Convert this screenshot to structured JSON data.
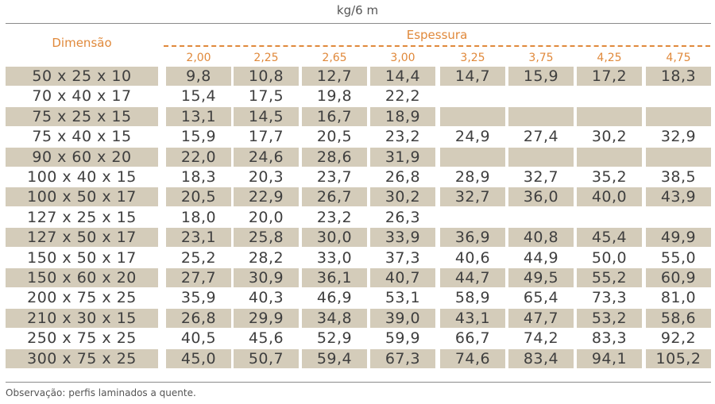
{
  "unit_header": "kg/6 m",
  "dimension_header": "Dimensão",
  "thickness_header": "Espessura",
  "thicknesses": [
    "2,00",
    "2,25",
    "2,65",
    "3,00",
    "3,25",
    "3,75",
    "4,25",
    "4,75"
  ],
  "rows": [
    {
      "dim": "50 x 25 x 10",
      "values": [
        "9,8",
        "10,8",
        "12,7",
        "14,4",
        "14,7",
        "15,9",
        "17,2",
        "18,3"
      ]
    },
    {
      "dim": "70 x 40 x 17",
      "values": [
        "15,4",
        "17,5",
        "19,8",
        "22,2",
        "",
        "",
        "",
        ""
      ]
    },
    {
      "dim": "75 x 25 x 15",
      "values": [
        "13,1",
        "14,5",
        "16,7",
        "18,9",
        "",
        "",
        "",
        ""
      ]
    },
    {
      "dim": "75 x 40 x 15",
      "values": [
        "15,9",
        "17,7",
        "20,5",
        "23,2",
        "24,9",
        "27,4",
        "30,2",
        "32,9"
      ]
    },
    {
      "dim": "90 x 60 x 20",
      "values": [
        "22,0",
        "24,6",
        "28,6",
        "31,9",
        "",
        "",
        "",
        ""
      ]
    },
    {
      "dim": "100 x 40 x 15",
      "values": [
        "18,3",
        "20,3",
        "23,7",
        "26,8",
        "28,9",
        "32,7",
        "35,2",
        "38,5"
      ]
    },
    {
      "dim": "100 x 50 x 17",
      "values": [
        "20,5",
        "22,9",
        "26,7",
        "30,2",
        "32,7",
        "36,0",
        "40,0",
        "43,9"
      ]
    },
    {
      "dim": "127 x 25 x 15",
      "values": [
        "18,0",
        "20,0",
        "23,2",
        "26,3",
        "",
        "",
        "",
        ""
      ]
    },
    {
      "dim": "127 x 50 x 17",
      "values": [
        "23,1",
        "25,8",
        "30,0",
        "33,9",
        "36,9",
        "40,8",
        "45,4",
        "49,9"
      ]
    },
    {
      "dim": "150 x 50 x 17",
      "values": [
        "25,2",
        "28,2",
        "33,0",
        "37,3",
        "40,6",
        "44,9",
        "50,0",
        "55,0"
      ]
    },
    {
      "dim": "150 x 60 x 20",
      "values": [
        "27,7",
        "30,9",
        "36,1",
        "40,7",
        "44,7",
        "49,5",
        "55,2",
        "60,9"
      ]
    },
    {
      "dim": "200 x 75 x 25",
      "values": [
        "35,9",
        "40,3",
        "46,9",
        "53,1",
        "58,9",
        "65,4",
        "73,3",
        "81,0"
      ]
    },
    {
      "dim": "210 x 30 x 15",
      "values": [
        "26,8",
        "29,9",
        "34,8",
        "39,0",
        "43,1",
        "47,7",
        "53,2",
        "58,6"
      ]
    },
    {
      "dim": "250 x 75 x 25",
      "values": [
        "40,5",
        "45,6",
        "52,9",
        "59,9",
        "66,7",
        "74,2",
        "83,3",
        "92,2"
      ]
    },
    {
      "dim": "300 x 75 x 25",
      "values": [
        "45,0",
        "50,7",
        "59,4",
        "67,3",
        "74,6",
        "83,4",
        "94,1",
        "105,2"
      ]
    }
  ],
  "note": "Observação: perfis laminados a quente.",
  "colors": {
    "accent": "#e0893b",
    "shade": "#d4ccba",
    "text": "#3f3f3f",
    "rule": "#8a8a8a"
  }
}
